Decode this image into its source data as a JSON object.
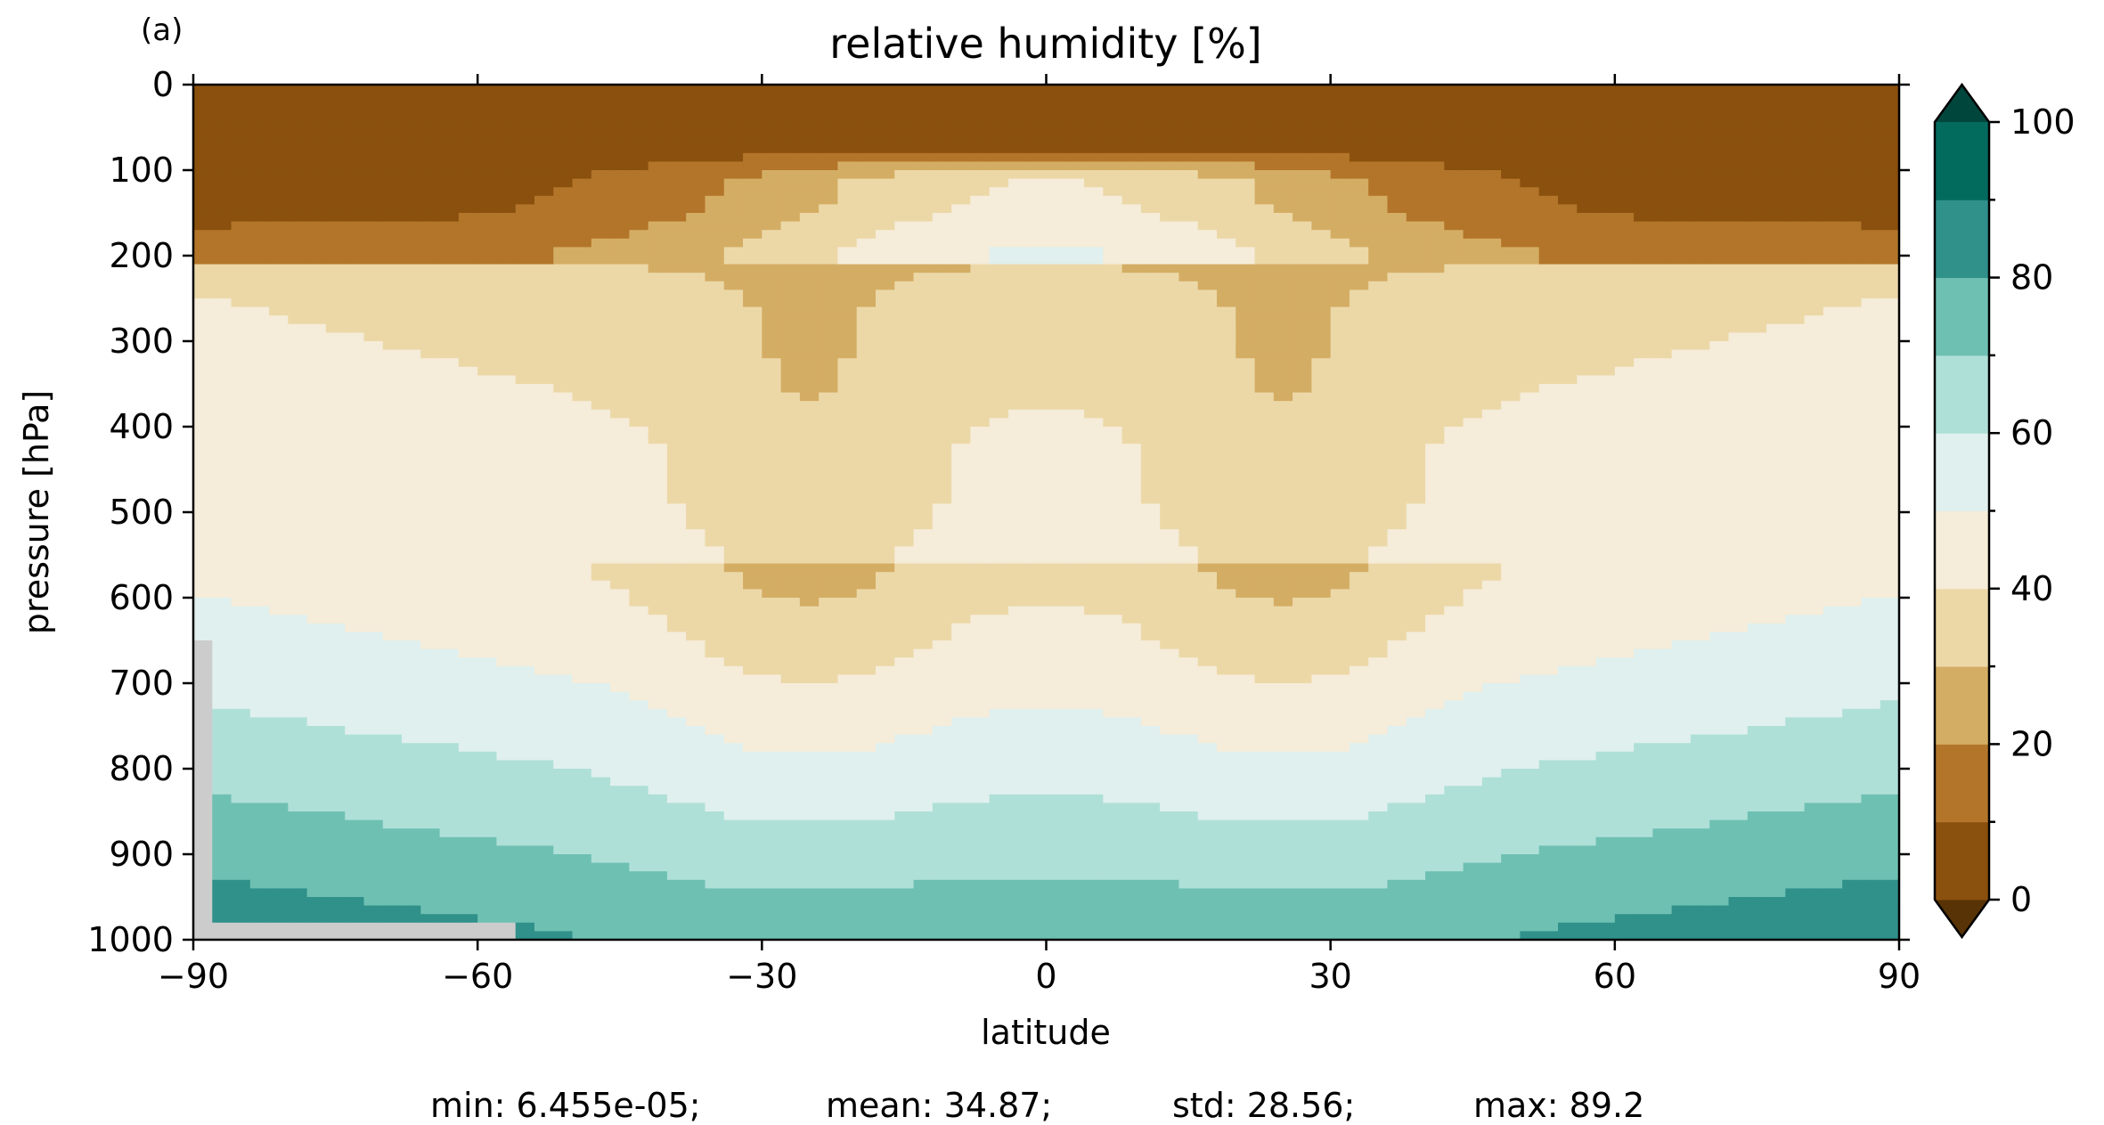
{
  "chart_data": {
    "type": "contourf",
    "panel_label": "(a)",
    "title": "relative humidity [%]",
    "xlabel": "latitude",
    "ylabel": "pressure [hPa]",
    "xlim": [
      -90,
      90
    ],
    "ylim": [
      1000,
      0
    ],
    "y_inverted": true,
    "xticks": [
      -90,
      -60,
      -30,
      0,
      30,
      60,
      90
    ],
    "xtick_labels": [
      "−90",
      "−60",
      "−30",
      "0",
      "30",
      "60",
      "90"
    ],
    "yticks": [
      0,
      100,
      200,
      300,
      400,
      500,
      600,
      700,
      800,
      900,
      1000
    ],
    "ytick_labels": [
      "0",
      "100",
      "200",
      "300",
      "400",
      "500",
      "600",
      "700",
      "800",
      "900",
      "1000"
    ],
    "levels": [
      0,
      10,
      20,
      30,
      40,
      50,
      60,
      70,
      80,
      90,
      100
    ],
    "colormap": [
      "#8a500d",
      "#b27529",
      "#d4ad64",
      "#ecd8a7",
      "#f5ecd9",
      "#e0f0ee",
      "#afe0d8",
      "#6ec0b2",
      "#30918a",
      "#036a5e"
    ],
    "extend": "both",
    "under_color": "#573305",
    "over_color": "#01463d",
    "missing_color": "#cccccc",
    "colorbar_ticks": [
      0,
      20,
      40,
      60,
      80,
      100
    ],
    "colorbar_tick_labels": [
      "0",
      "20",
      "40",
      "60",
      "80",
      "100"
    ],
    "grid": false,
    "stats": {
      "min": "min: 6.455e-05;",
      "mean": "mean: 34.87;",
      "std": "std: 28.56;",
      "max": "max: 89.2"
    }
  }
}
